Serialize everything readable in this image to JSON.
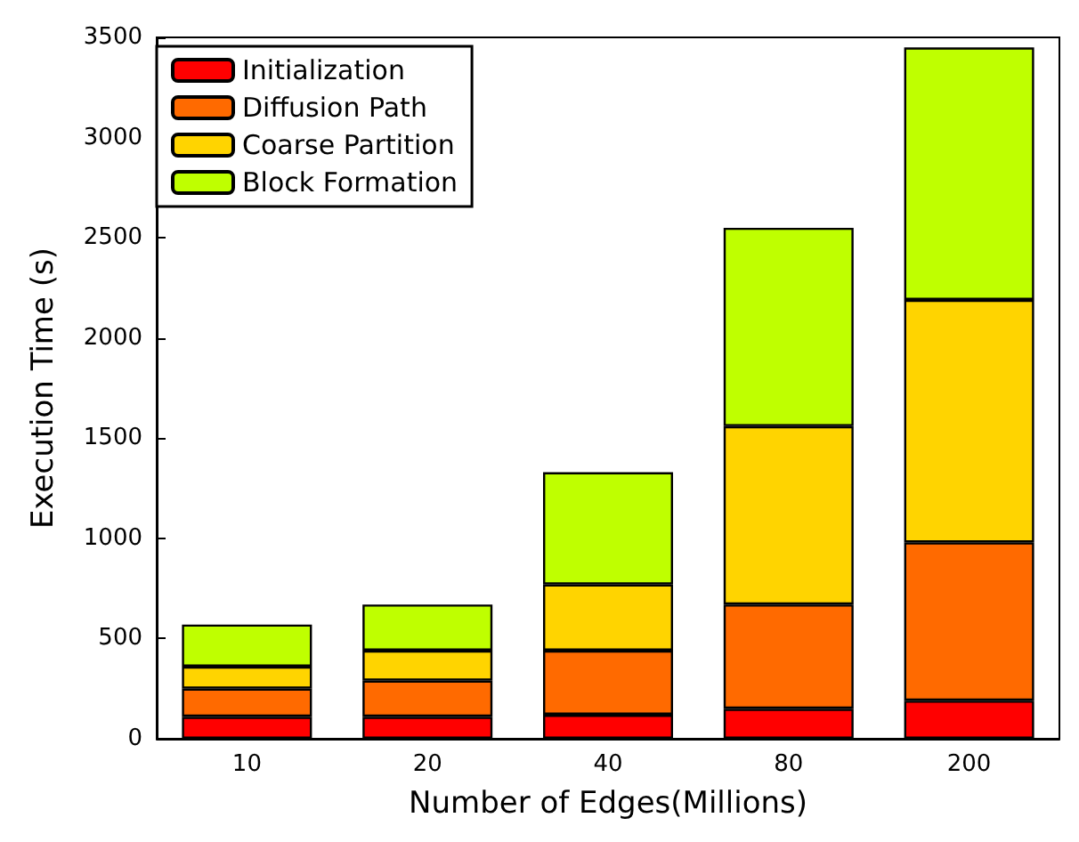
{
  "chart_data": {
    "type": "bar",
    "stacked": true,
    "xlabel": "Number of Edges(Millions)",
    "ylabel": "Execution Time (s)",
    "categories": [
      "10",
      "20",
      "40",
      "80",
      "200"
    ],
    "series": [
      {
        "name": "Initialization",
        "color": "#ff0000",
        "values": [
          110,
          110,
          120,
          150,
          190
        ]
      },
      {
        "name": "Diffusion Path",
        "color": "#ff6a00",
        "values": [
          140,
          180,
          320,
          520,
          790
        ]
      },
      {
        "name": "Coarse Partition",
        "color": "#ffd400",
        "values": [
          110,
          150,
          330,
          890,
          1210
        ]
      },
      {
        "name": "Block Formation",
        "color": "#bfff00",
        "values": [
          210,
          230,
          560,
          990,
          1260
        ]
      }
    ],
    "ylim": [
      0,
      3500
    ],
    "yticks": [
      0,
      500,
      1000,
      1500,
      2000,
      2500,
      3000,
      3500
    ],
    "grid": false,
    "legend": "top left"
  }
}
